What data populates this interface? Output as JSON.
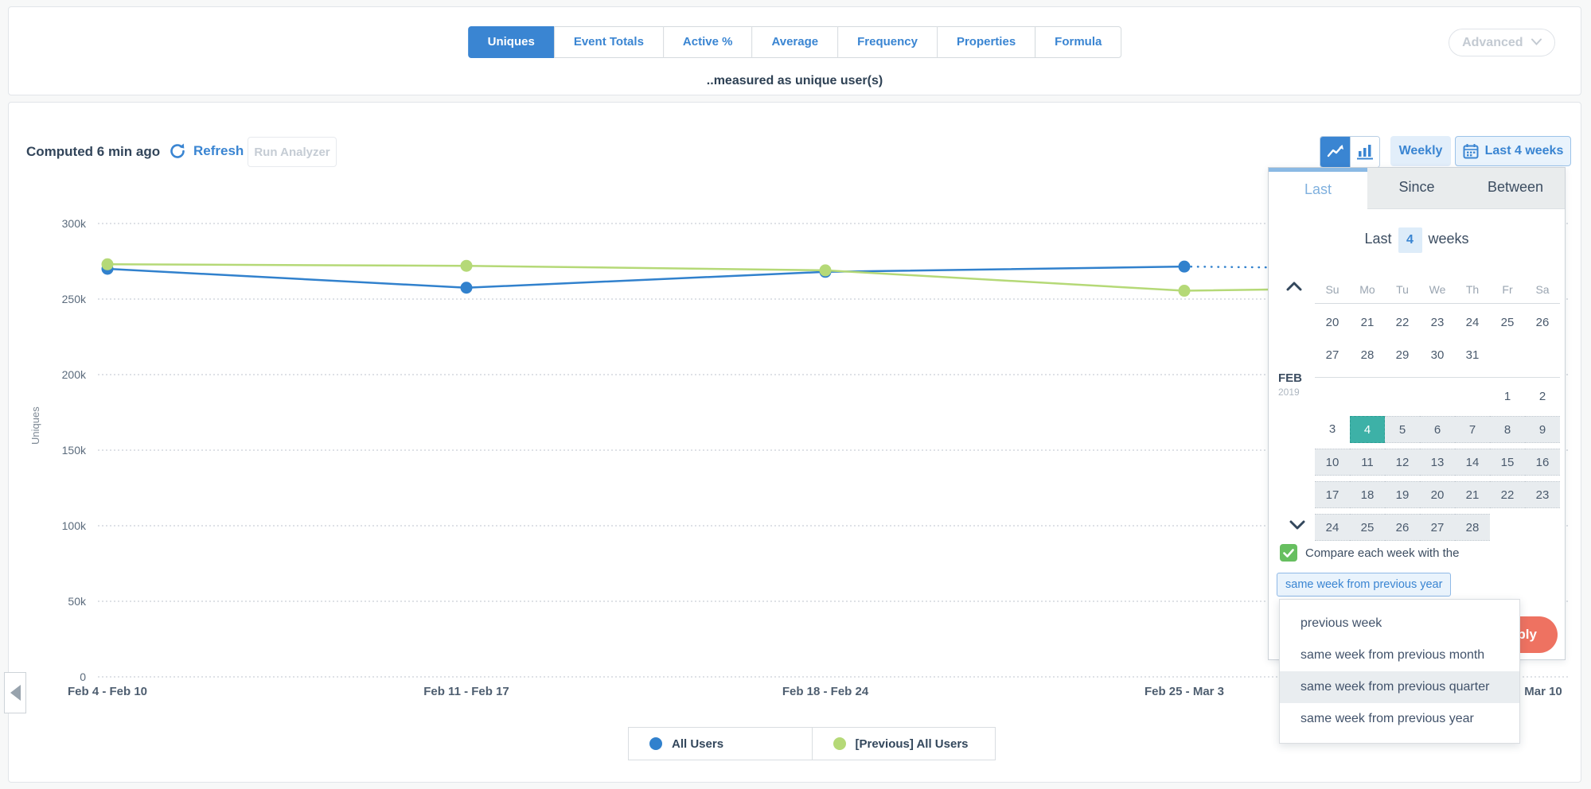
{
  "measure_bar": {
    "tabs": [
      {
        "label": "Uniques",
        "active": true
      },
      {
        "label": "Event Totals",
        "active": false
      },
      {
        "label": "Active %",
        "active": false
      },
      {
        "label": "Average",
        "active": false
      },
      {
        "label": "Frequency",
        "active": false
      },
      {
        "label": "Properties",
        "active": false
      },
      {
        "label": "Formula",
        "active": false
      }
    ],
    "subtitle": "..measured as unique user(s)",
    "advanced_label": "Advanced"
  },
  "toolbar": {
    "computed": "Computed 6 min ago",
    "refresh": "Refresh",
    "run_analyzer": "Run Analyzer",
    "weekly": "Weekly",
    "date_range": "Last 4 weeks"
  },
  "chart_data": {
    "type": "line",
    "title": "",
    "xlabel": "",
    "ylabel": "Uniques",
    "categories": [
      "Feb 4 - Feb 10",
      "Feb 11 - Feb 17",
      "Feb 18 - Feb 24",
      "Feb 25 - Mar 3",
      "Mar 10"
    ],
    "series": [
      {
        "name": "All Users",
        "color": "#3181cd",
        "values": [
          270000,
          257500,
          268000,
          271500
        ],
        "projection_end": 269000,
        "projection_dotted": true
      },
      {
        "name": "[Previous] All Users",
        "color": "#b5d977",
        "values": [
          273000,
          272000,
          269000,
          255500
        ],
        "projection_end": 259000,
        "projection_dotted": false
      }
    ],
    "ylim": [
      0,
      300000
    ],
    "ytick_step": 50000,
    "grid": true,
    "legend_position": "bottom"
  },
  "legend": [
    {
      "label": "All Users",
      "color": "#3181cd"
    },
    {
      "label": "[Previous] All Users",
      "color": "#b5d977"
    }
  ],
  "date_picker": {
    "tabs": [
      {
        "label": "Last",
        "active": true
      },
      {
        "label": "Since",
        "active": false
      },
      {
        "label": "Between",
        "active": false
      }
    ],
    "last_prefix": "Last",
    "last_n": "4",
    "last_unit": "weeks",
    "calendar": {
      "month_label": "FEB",
      "year_label": "2019",
      "weekdays": [
        "Su",
        "Mo",
        "Tu",
        "We",
        "Th",
        "Fr",
        "Sa"
      ],
      "rows": [
        {
          "cells": [
            "20",
            "21",
            "22",
            "23",
            "24",
            "25",
            "26"
          ],
          "hl": [],
          "sel": [],
          "sep_after": false
        },
        {
          "cells": [
            "27",
            "28",
            "29",
            "30",
            "31",
            "",
            ""
          ],
          "hl": [],
          "sel": [],
          "sep_after": true
        },
        {
          "cells": [
            "",
            "",
            "",
            "",
            "",
            "1",
            "2"
          ],
          "hl": [],
          "sel": [],
          "sep_after": false
        },
        {
          "cells": [
            "3",
            "4",
            "5",
            "6",
            "7",
            "8",
            "9"
          ],
          "hl": [
            2,
            3,
            4,
            5,
            6
          ],
          "sel": [
            1
          ],
          "sep_after": false
        },
        {
          "cells": [
            "10",
            "11",
            "12",
            "13",
            "14",
            "15",
            "16"
          ],
          "hl": [
            0,
            1,
            2,
            3,
            4,
            5,
            6
          ],
          "sel": [],
          "sep_after": false
        },
        {
          "cells": [
            "17",
            "18",
            "19",
            "20",
            "21",
            "22",
            "23"
          ],
          "hl": [
            0,
            1,
            2,
            3,
            4,
            5,
            6
          ],
          "sel": [],
          "sep_after": false
        },
        {
          "cells": [
            "24",
            "25",
            "26",
            "27",
            "28",
            "",
            ""
          ],
          "hl": [
            0,
            1,
            2,
            3,
            4
          ],
          "sel": [],
          "sep_after": false
        }
      ]
    },
    "compare_label": "Compare each week with the",
    "compare_checked": true,
    "compare_value": "same week from previous year",
    "apply_label": "Apply",
    "compare_options": [
      {
        "label": "previous week",
        "hover": false
      },
      {
        "label": "same week from previous month",
        "hover": false
      },
      {
        "label": "same week from previous quarter",
        "hover": true
      },
      {
        "label": "same week from previous year",
        "hover": false
      }
    ]
  }
}
